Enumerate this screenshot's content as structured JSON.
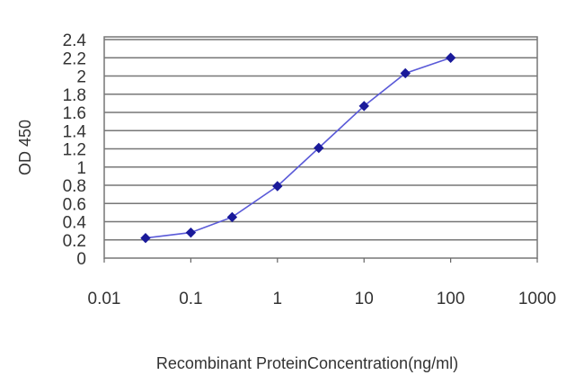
{
  "chart_data": {
    "type": "line",
    "xlabel": "Recombinant ProteinConcentration(ng/ml)",
    "ylabel": "OD 450",
    "x_scale": "log",
    "xlim": [
      0.01,
      1000
    ],
    "ylim": [
      0,
      2.4
    ],
    "x_ticks": [
      "0.01",
      "0.1",
      "1",
      "10",
      "100",
      "1000"
    ],
    "y_ticks": [
      "0",
      "0.2",
      "0.4",
      "0.6",
      "0.8",
      "1",
      "1.2",
      "1.4",
      "1.6",
      "1.8",
      "2",
      "2.2",
      "2.4"
    ],
    "grid": "horizontal",
    "legend": "none",
    "series": [
      {
        "x": [
          0.03,
          0.1,
          0.3,
          1,
          3,
          10,
          30,
          100
        ],
        "y": [
          0.22,
          0.28,
          0.45,
          0.79,
          1.21,
          1.67,
          2.03,
          2.2
        ]
      }
    ],
    "colors": {
      "line": "#5a5ad8",
      "marker": "#1a1a9a",
      "grid": "#777777",
      "axis": "#666666",
      "text": "#333333"
    }
  }
}
